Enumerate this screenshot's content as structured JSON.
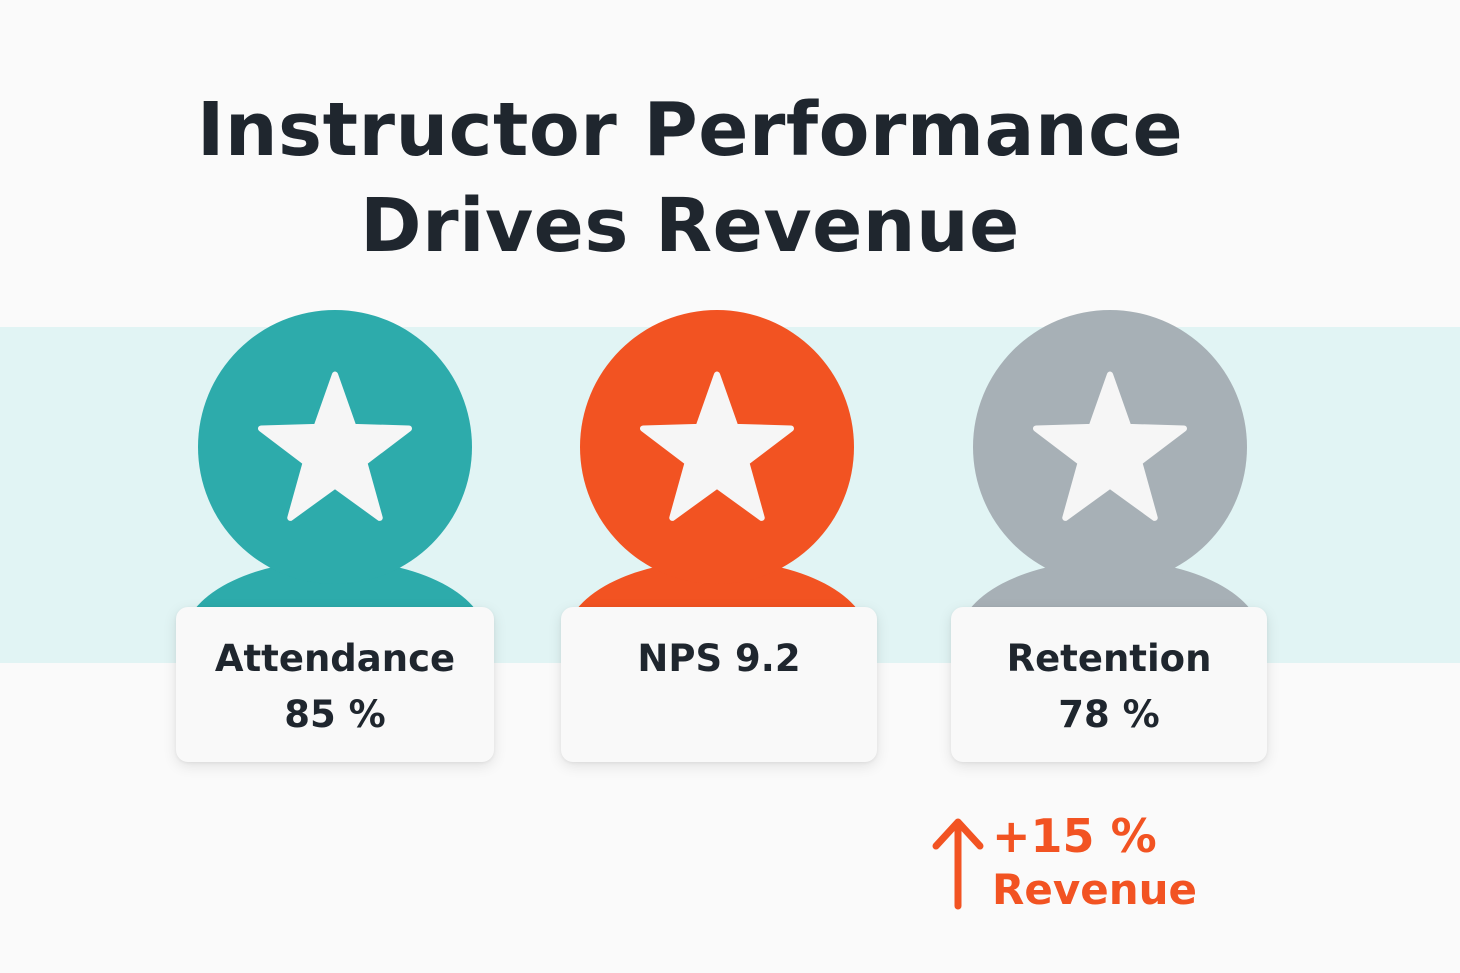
{
  "title": {
    "line1": "Instructor Performance",
    "line2": "Drives Revenue"
  },
  "colors": {
    "teal": "#2dabab",
    "orange": "#f25322",
    "gray": "#a7b0b6",
    "band": "#e1f4f4",
    "text": "#1f262e",
    "accent": "#f25322"
  },
  "metrics": [
    {
      "label": "Attendance",
      "value": "85 %",
      "icon": "star-icon",
      "color": "#2dabab"
    },
    {
      "label": "NPS 9.2",
      "value": "",
      "icon": "star-icon",
      "color": "#f25322"
    },
    {
      "label": "Retention",
      "value": "78 %",
      "icon": "star-icon",
      "color": "#a7b0b6"
    }
  ],
  "revenue": {
    "change": "+15 %",
    "label": "Revenue",
    "icon": "arrow-up-icon"
  }
}
